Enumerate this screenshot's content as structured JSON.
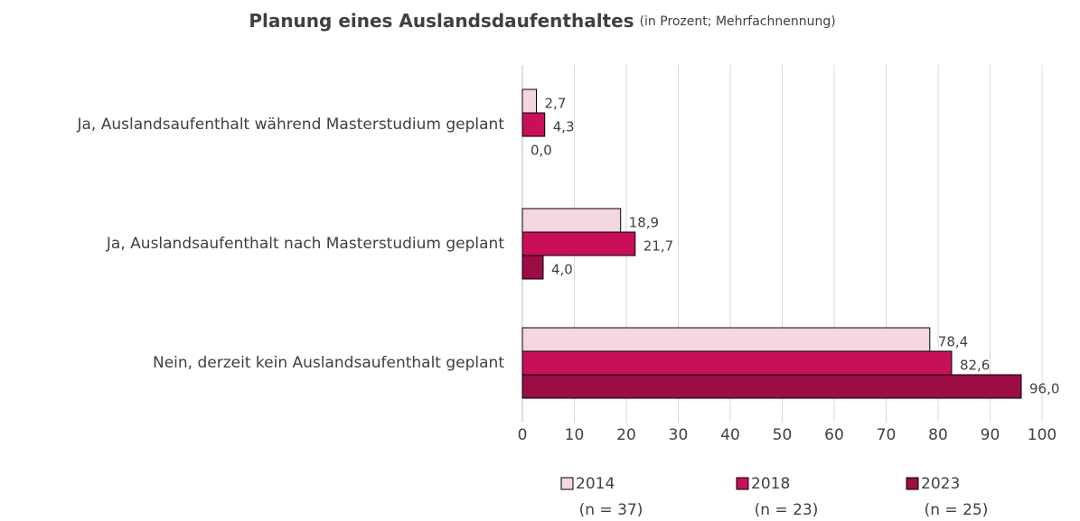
{
  "chart_data": {
    "type": "hbar",
    "title": "Planung eines Auslandsdaufenthaltes",
    "subtitle": "(in Prozent; Mehrfachnennung)",
    "categories": [
      "Ja, Auslandsaufenthalt während Masterstudium geplant",
      "Ja, Auslandsaufenthalt nach Masterstudium geplant",
      "Nein, derzeit kein Auslandsaufenthalt geplant"
    ],
    "series": [
      {
        "name": "2014",
        "sample": "(n = 37)",
        "color": "#f2d7df",
        "values": [
          2.7,
          18.9,
          78.4
        ],
        "value_labels": [
          "2,7",
          "18,9",
          "78,4"
        ]
      },
      {
        "name": "2018",
        "sample": "(n = 23)",
        "color": "#c8105a",
        "values": [
          4.3,
          21.7,
          82.6
        ],
        "value_labels": [
          "4,3",
          "21,7",
          "82,6"
        ]
      },
      {
        "name": "2023",
        "sample": "(n = 25)",
        "color": "#9c0c45",
        "values": [
          0.0,
          4.0,
          96.0
        ],
        "value_labels": [
          "0,0",
          "4,0",
          "96,0"
        ]
      }
    ],
    "xlim": [
      0,
      100
    ],
    "xticks": [
      0,
      10,
      20,
      30,
      40,
      50,
      60,
      70,
      80,
      90,
      100
    ],
    "grid": true
  }
}
